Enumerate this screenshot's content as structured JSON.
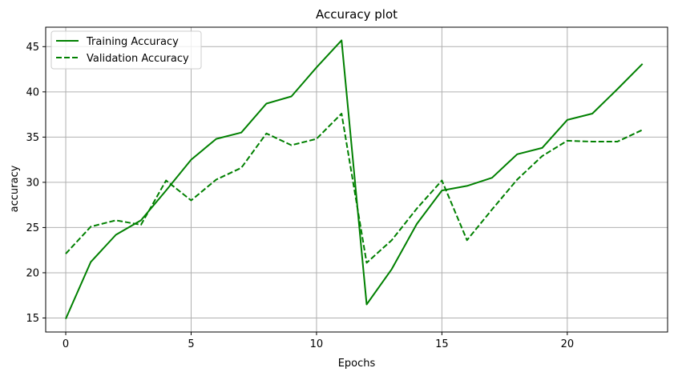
{
  "chart_data": {
    "type": "line",
    "title": "Accuracy plot",
    "xlabel": "Epochs",
    "ylabel": "accuracy",
    "xlim": [
      -0.8,
      24.0
    ],
    "ylim": [
      13.45,
      47.15
    ],
    "xticks": [
      0,
      5,
      10,
      15,
      20
    ],
    "yticks": [
      15,
      20,
      25,
      30,
      35,
      40,
      45
    ],
    "grid": true,
    "legend_position": "upper-left",
    "x": [
      0,
      1,
      2,
      3,
      4,
      5,
      6,
      7,
      8,
      9,
      10,
      11,
      12,
      13,
      14,
      15,
      16,
      17,
      18,
      19,
      20,
      21,
      22,
      23
    ],
    "series": [
      {
        "name": "Training Accuracy",
        "color": "#008000",
        "dash": "solid",
        "values": [
          14.9,
          21.2,
          24.2,
          25.8,
          29.1,
          32.5,
          34.8,
          35.5,
          38.7,
          39.5,
          42.7,
          45.7,
          16.5,
          20.4,
          25.4,
          29.1,
          29.6,
          30.5,
          33.1,
          33.8,
          36.9,
          37.6,
          40.3,
          43.1
        ]
      },
      {
        "name": "Validation Accuracy",
        "color": "#008000",
        "dash": "dashed",
        "values": [
          22.1,
          25.1,
          25.8,
          25.3,
          30.2,
          28.0,
          30.3,
          31.6,
          35.4,
          34.1,
          34.8,
          37.6,
          21.1,
          23.6,
          27.1,
          30.2,
          23.6,
          27.0,
          30.3,
          32.9,
          34.6,
          34.5,
          34.5,
          35.8
        ]
      }
    ]
  }
}
